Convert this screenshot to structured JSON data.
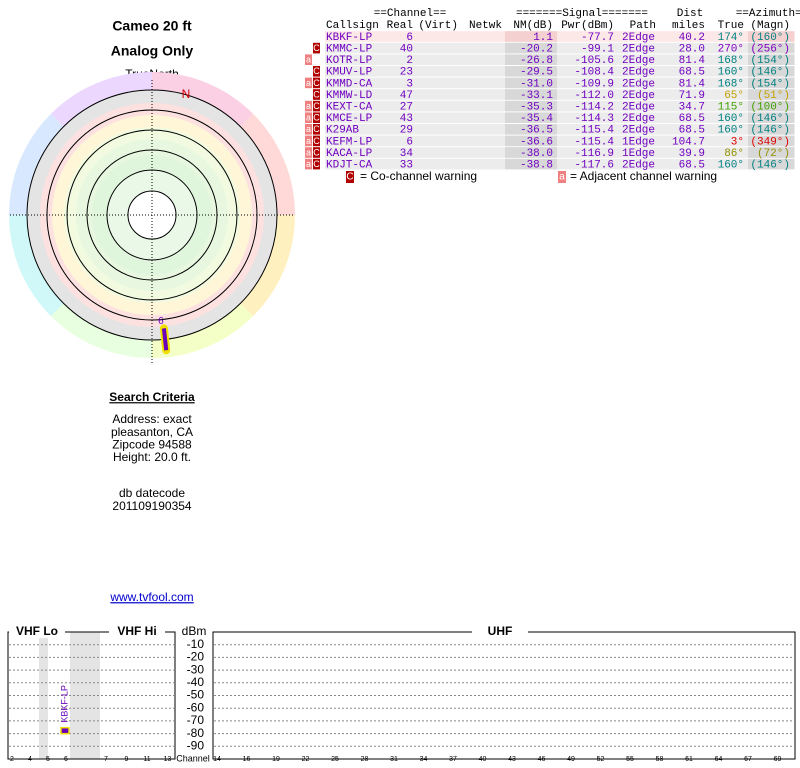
{
  "header": {
    "title": "Cameo 20 ft",
    "subtitle": "Analog Only"
  },
  "polar": {
    "north_label": "TrueNorth",
    "magnetic_label": "N",
    "points": [
      {
        "label": "6",
        "azimuth": 174,
        "color": "#6a00b8"
      }
    ]
  },
  "table": {
    "group_headers": [
      "==Channel==",
      "=======Signal=======",
      "Dist",
      "==Azimuth=="
    ],
    "columns": [
      "Callsign",
      "Real",
      "(Virt)",
      "Netwk",
      "NM(dB)",
      "Pwr(dBm)",
      "Path",
      "miles",
      "True",
      "(Magn)"
    ],
    "rows": [
      {
        "callsign": "KBKF-LP",
        "real": "6",
        "nm": "1.1",
        "pwr": "-77.7",
        "path": "2Edge",
        "dist": "40.2",
        "true": "174°",
        "magn": "(160°)",
        "azimuth_color": "#008080"
      },
      {
        "callsign": "KMMC-LP",
        "real": "40",
        "nm": "-20.2",
        "pwr": "-99.1",
        "path": "2Edge",
        "dist": "28.0",
        "true": "270°",
        "magn": "(256°)",
        "azimuth_color": "#8000c0",
        "warnings": [
          "C"
        ]
      },
      {
        "callsign": "KOTR-LP",
        "real": "2",
        "nm": "-26.8",
        "pwr": "-105.6",
        "path": "2Edge",
        "dist": "81.4",
        "true": "168°",
        "magn": "(154°)",
        "azimuth_color": "#008080",
        "warnings": [
          "a"
        ]
      },
      {
        "callsign": "KMUV-LP",
        "real": "23",
        "nm": "-29.5",
        "pwr": "-108.4",
        "path": "2Edge",
        "dist": "68.5",
        "true": "160°",
        "magn": "(146°)",
        "azimuth_color": "#008080",
        "warnings": [
          "C"
        ]
      },
      {
        "callsign": "KMMD-CA",
        "real": "3",
        "nm": "-31.0",
        "pwr": "-109.9",
        "path": "2Edge",
        "dist": "81.4",
        "true": "168°",
        "magn": "(154°)",
        "azimuth_color": "#008080",
        "warnings": [
          "a",
          "C"
        ]
      },
      {
        "callsign": "KMMW-LD",
        "real": "47",
        "nm": "-33.1",
        "pwr": "-112.0",
        "path": "2Edge",
        "dist": "71.9",
        "true": "65°",
        "magn": "(51°)",
        "azimuth_color": "#c0a000",
        "warnings": [
          "C"
        ]
      },
      {
        "callsign": "KEXT-CA",
        "real": "27",
        "nm": "-35.3",
        "pwr": "-114.2",
        "path": "2Edge",
        "dist": "34.7",
        "true": "115°",
        "magn": "(100°)",
        "azimuth_color": "#40a000",
        "warnings": [
          "a",
          "C"
        ]
      },
      {
        "callsign": "KMCE-LP",
        "real": "43",
        "nm": "-35.4",
        "pwr": "-114.3",
        "path": "2Edge",
        "dist": "68.5",
        "true": "160°",
        "magn": "(146°)",
        "azimuth_color": "#008080",
        "warnings": [
          "a",
          "C"
        ]
      },
      {
        "callsign": "K29AB",
        "real": "29",
        "nm": "-36.5",
        "pwr": "-115.4",
        "path": "2Edge",
        "dist": "68.5",
        "true": "160°",
        "magn": "(146°)",
        "azimuth_color": "#008080",
        "warnings": [
          "a",
          "C"
        ]
      },
      {
        "callsign": "KEFM-LP",
        "real": "6",
        "nm": "-36.6",
        "pwr": "-115.4",
        "path": "1Edge",
        "dist": "104.7",
        "true": "3°",
        "magn": "(349°)",
        "azimuth_color": "#e00000",
        "warnings": [
          "a",
          "C"
        ]
      },
      {
        "callsign": "KACA-LP",
        "real": "34",
        "nm": "-38.0",
        "pwr": "-116.9",
        "path": "1Edge",
        "dist": "39.9",
        "true": "86°",
        "magn": "(72°)",
        "azimuth_color": "#909000",
        "warnings": [
          "a",
          "C"
        ]
      },
      {
        "callsign": "KDJT-CA",
        "real": "33",
        "nm": "-38.8",
        "pwr": "-117.6",
        "path": "2Edge",
        "dist": "68.5",
        "true": "160°",
        "magn": "(146°)",
        "azimuth_color": "#008080",
        "warnings": [
          "a",
          "C"
        ]
      }
    ]
  },
  "legend": {
    "co_icon": "C",
    "co_text": "= Co-channel warning",
    "adj_icon": "a",
    "adj_text": "= Adjacent channel warning"
  },
  "search": {
    "title": "Search Criteria",
    "lines": [
      "Address: exact",
      "pleasanton, CA",
      "Zipcode 94588",
      "Height: 20.0 ft."
    ],
    "datecode_label": "db datecode",
    "datecode": "201109190354"
  },
  "link": "www.tvfool.com",
  "spectrum": {
    "sections": [
      "VHF Lo",
      "VHF Hi",
      "UHF"
    ],
    "ylabel": "dBm",
    "ylim": [
      -100,
      0
    ],
    "yticks": [
      -10,
      -20,
      -30,
      -40,
      -50,
      -60,
      -70,
      -80,
      -90
    ],
    "xlabel": "Channel",
    "vhf_lo_channels": [
      "2",
      "4",
      "5",
      "6"
    ],
    "vhf_hi_channels": [
      "7",
      "9",
      "11",
      "13"
    ],
    "uhf_channels": [
      "14",
      "16",
      "19",
      "22",
      "25",
      "28",
      "31",
      "34",
      "37",
      "40",
      "43",
      "46",
      "49",
      "52",
      "55",
      "58",
      "61",
      "64",
      "67",
      "69"
    ],
    "markers": [
      {
        "label": "KBKF-LP",
        "value": -77.7,
        "color": "#6a00b8"
      }
    ]
  }
}
